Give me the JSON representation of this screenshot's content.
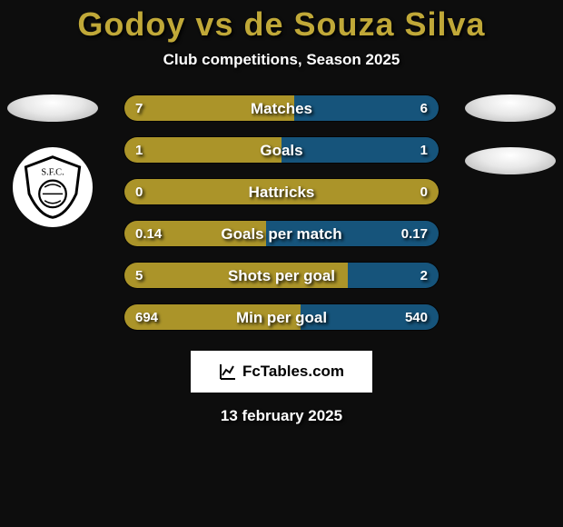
{
  "title": "Godoy vs de Souza Silva",
  "subtitle": "Club competitions, Season 2025",
  "watermark_text": "FcTables.com",
  "date_text": "13 february 2025",
  "colors": {
    "accent": "#c0a838",
    "fill_main": "#ab9429",
    "fill_alt": "#16547b",
    "bg": "#0d0d0d"
  },
  "stats": [
    {
      "label": "Matches",
      "left_val": "7",
      "right_val": "6",
      "left_pct": 54,
      "right_color": "fill_alt"
    },
    {
      "label": "Goals",
      "left_val": "1",
      "right_val": "1",
      "left_pct": 50,
      "right_color": "fill_alt"
    },
    {
      "label": "Hattricks",
      "left_val": "0",
      "right_val": "0",
      "left_pct": 100,
      "right_color": "fill_main"
    },
    {
      "label": "Goals per match",
      "left_val": "0.14",
      "right_val": "0.17",
      "left_pct": 45,
      "right_color": "fill_alt"
    },
    {
      "label": "Shots per goal",
      "left_val": "5",
      "right_val": "2",
      "left_pct": 71,
      "right_color": "fill_alt"
    },
    {
      "label": "Min per goal",
      "left_val": "694",
      "right_val": "540",
      "left_pct": 56,
      "right_color": "fill_alt"
    }
  ]
}
